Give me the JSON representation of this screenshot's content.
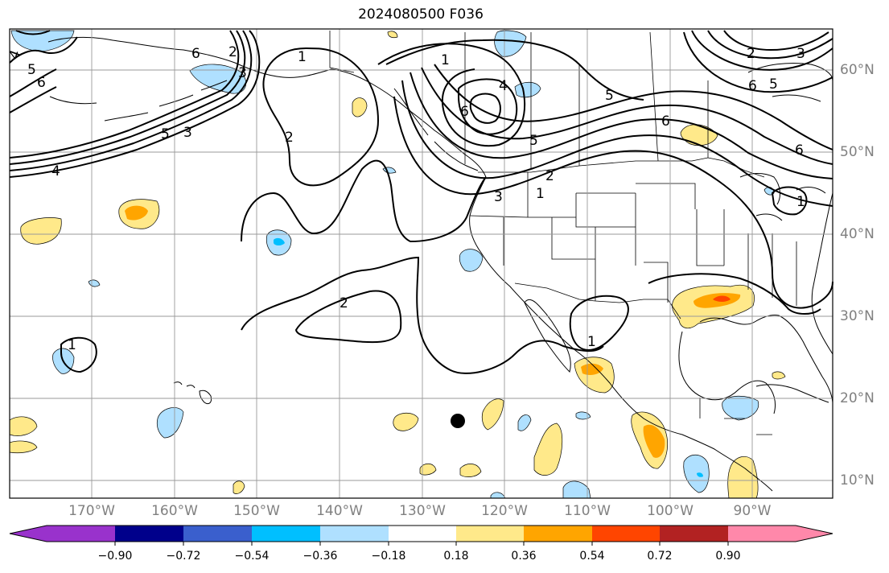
{
  "title": "2024080500 F036",
  "map": {
    "longitude_labels": [
      "170°W",
      "160°W",
      "150°W",
      "140°W",
      "130°W",
      "120°W",
      "110°W",
      "100°W",
      "90°W"
    ],
    "latitude_labels": [
      "60°N",
      "50°N",
      "40°N",
      "30°N",
      "20°N",
      "10°N"
    ],
    "contour_labels": [
      "1",
      "2",
      "3",
      "4",
      "5",
      "6"
    ],
    "colors": {
      "coastline": "#000000",
      "gridline": "#999999",
      "contour": "#000000",
      "fill_pos_1": "#ffe98a",
      "fill_pos_2": "#ffa500",
      "fill_neg_1": "#afe0ff",
      "fill_neg_2": "#00bfff"
    },
    "marker": "black-dot"
  },
  "colorbar": {
    "tick_labels": [
      "−0.90",
      "−0.72",
      "−0.54",
      "−0.36",
      "−0.18",
      "0.18",
      "0.36",
      "0.54",
      "0.72",
      "0.90"
    ],
    "colors": [
      "#9932cc",
      "#00008b",
      "#3a5fcd",
      "#00bfff",
      "#afe0ff",
      "#ffffff",
      "#ffe98a",
      "#ffa500",
      "#ff4500",
      "#b22222",
      "#ff88aa"
    ]
  }
}
